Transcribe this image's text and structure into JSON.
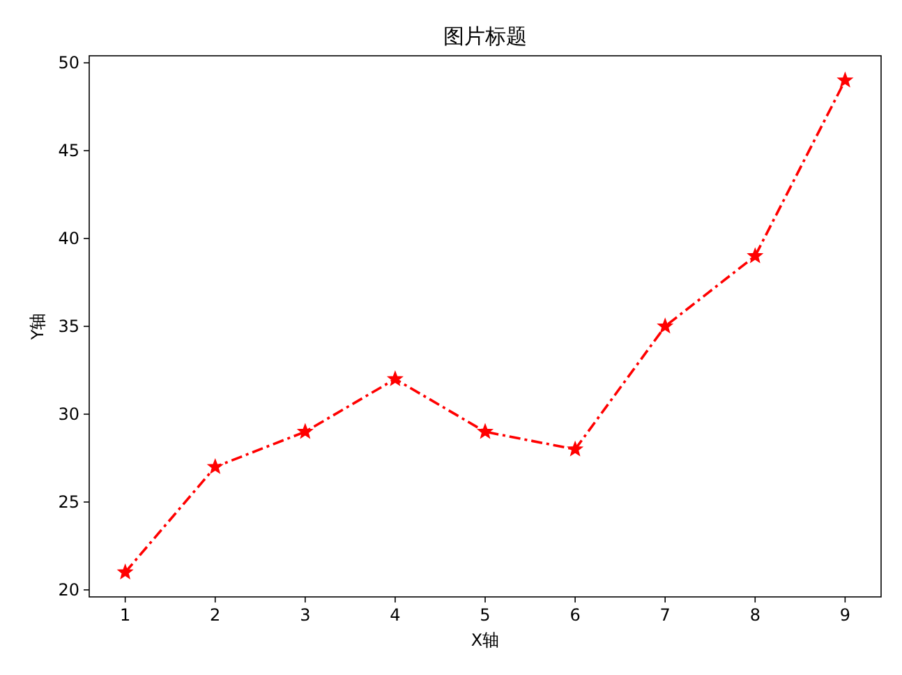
{
  "chart_data": {
    "type": "line",
    "title": "图片标题",
    "xlabel": "X轴",
    "ylabel": "Y轴",
    "x": [
      1,
      2,
      3,
      4,
      5,
      6,
      7,
      8,
      9
    ],
    "series": [
      {
        "color": "#ff0000",
        "values": [
          21,
          27,
          29,
          32,
          29,
          28,
          35,
          39,
          49
        ]
      }
    ],
    "xlim": [
      0.6,
      9.4
    ],
    "ylim": [
      19.6,
      50.4
    ],
    "xticks": [
      1,
      2,
      3,
      4,
      5,
      6,
      7,
      8,
      9
    ],
    "yticks": [
      20,
      25,
      30,
      35,
      40,
      45,
      50
    ],
    "grid": false,
    "marker": "star",
    "line_style": "dashdot"
  }
}
